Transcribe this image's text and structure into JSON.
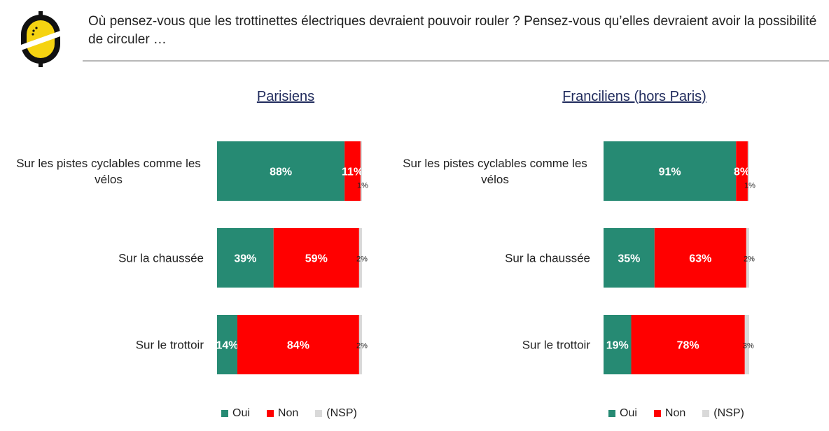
{
  "question": "Où pensez-vous que les trottinettes électriques devraient pouvoir rouler ? Pensez-vous qu’elles devraient avoir la possibilité de circuler …",
  "colors": {
    "oui": "#268a73",
    "non": "#ff0000",
    "nsp": "#d9d9d9",
    "title": "#1f2a5c"
  },
  "legend": [
    {
      "label": "Oui",
      "key": "oui"
    },
    {
      "label": "Non",
      "key": "non"
    },
    {
      "label": "(NSP)",
      "key": "nsp"
    }
  ],
  "chart_data": [
    {
      "type": "bar",
      "stacked": true,
      "orientation": "horizontal",
      "title": "Parisiens",
      "categories": [
        "Sur les pistes cyclables comme les vélos",
        "Sur la chaussée",
        "Sur le trottoir"
      ],
      "series": [
        {
          "name": "Oui",
          "values": [
            88,
            39,
            14
          ]
        },
        {
          "name": "Non",
          "values": [
            11,
            59,
            84
          ]
        },
        {
          "name": "(NSP)",
          "values": [
            1,
            2,
            2
          ]
        }
      ],
      "unit": "%",
      "xlim": [
        0,
        100
      ],
      "legend_position": "bottom"
    },
    {
      "type": "bar",
      "stacked": true,
      "orientation": "horizontal",
      "title": "Franciliens (hors Paris)",
      "categories": [
        "Sur les pistes cyclables comme les vélos",
        "Sur la chaussée",
        "Sur le trottoir"
      ],
      "series": [
        {
          "name": "Oui",
          "values": [
            91,
            35,
            19
          ]
        },
        {
          "name": "Non",
          "values": [
            8,
            63,
            78
          ]
        },
        {
          "name": "(NSP)",
          "values": [
            1,
            2,
            3
          ]
        }
      ],
      "unit": "%",
      "xlim": [
        0,
        100
      ],
      "legend_position": "bottom"
    }
  ]
}
